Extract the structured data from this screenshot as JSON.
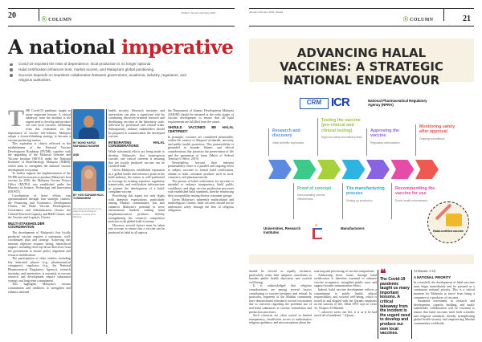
{
  "left_page": {
    "page_number": "20",
    "section": "COLUMN",
    "section_icon": "halal-h-logo",
    "issue": "#Halal | January-February 2026",
    "title_part1": "A national",
    "title_part2": "imperative",
    "bullets": [
      "Covid-19 exposed the risks of dependence: local production is no longer optional.",
      "Halal certification enhances trust, market access, and Malaysia's global positioning.",
      "Success depends on seamless collaboration between government, academia, industry, regulators, and religious authorities."
    ],
    "dropcap": "T",
    "col1": [
      "HE Covid-19 pandemic taught us many important lessons. A critical takeaway from the incident is the urgent need to develop and produce our own local vaccines. Stemming from this realisation on the importance of vaccine self-reliance, Malaysia adopts a forward-thinking strategy to become a vaccine-producing nation.",
      "This aspiration is clearly reflected in the establishment of the National Vaccine Development Roadmap (NVDR), together with the upgrading of the Malaysia Genome and Vaccine Institute (MGVI) under the National Institutes of Biotechnology Malaysia (NIBM), which aims to strengthen the national vaccine development ecosystem.",
      "To further support the implementation of the NVDR and its mission to produce Malaysia's first vaccine by 2030, the Malaysia Vaccine Project Office (MVPO) was established under the Ministry of Science, Technology and Innovation (MOSTI).",
      "Coordination of these efforts was operationalised through four strategic clusters: the Financing and Economics Development Cluster, the Halal Vaccine Development, Governance and Administration Cluster, the Clinical Research Capacity and R&D Cluster, and the Vaccine and Logistics Cluster."
    ],
    "heading1": "MULTI-STAKEHOLDER COORDINATION",
    "col1b": [
      "The development of Malaysia's first locally produced vaccine requires a systematic, well-coordinated plan and strategy. Achieving this national objective requires strong, hierarchical support, including clear top-down directives from the government to ensure policy alignment and resource mobilisation.",
      "The participation of other entities, including key industrial players (e.g., pharmaceutical companies), regulators (e.g., the National Pharmaceutical Regulatory Agency), research institutes, and universities, is essential, as vaccine research and development require substantial synergy and long-term commitment.",
      "This highlights Malaysia's serious commitment and readiness to strengthen and enhance national"
    ],
    "authors": [
      {
        "prefix": "BY",
        "name": "MOHD HAFIZI MUHAMAD HASHIM"
      },
      {
        "prefix": "BY",
        "name": "YUSI SUHAIMI HAJI-YUSMANIKIM"
      }
    ],
    "and": "AND",
    "author_note": "The writers are lecturers at the Halal Products Research Institute, Universiti Putra Malaysia.",
    "col3": [
      "health security. Research institutes and universities can play a significant role by conducting discovery-oriented research and developing vaccines at the laboratory scale, followed by preclinical and clinical trials. Subsequently, industry stakeholders should be prepared to commercialise the developed vaccine."
    ],
    "heading2": "INTEGRATING HALAL CONSIDERATIONS",
    "col3b": [
      "While substantial efforts are being made to develop Malaysia's first home-grown vaccine, one critical criterion is ensuring that the locally produced vaccine can be certified halal.",
      "Given Malaysia's established reputation as a global leader and reference point in the halal industry, the nation is well-positioned to leverage its existing expertise, regulatory frameworks, and certification infrastructure to pioneer the development of a halal-compliant vaccine.",
      "Prioritising this aspect not only aligns with domestic expectations, particularly among Muslim communities, but also enhances Malaysia's potential to serve international markets seeking halal biopharmaceutical products, thereby strengthening the country's competitive position in the global halal economy.",
      "However, several factors must be taken into account to ensure that a vaccine can be produced as halal in all aspects."
    ],
    "col4": [
      "the Department of Islamic Development Malaysia (JAKIM) should be initiated at the early stages of vaccine development to ensure that all halal requirements are fulfilled from the outset."
    ],
    "heading3": "SHOULD VACCINES BE HALAL CERTIFIED?",
    "col4b": [
      "In principle, vaccines are considered permissible, within the context of Maqasid al-shariah, necessity and public health protection. This permissibility is grounded in broader Islamic and ethical considerations that prioritise the preservation of life and the prevention of harm (Mufti of Federal Territory's Office, 2019).",
      "Nevertheless, beyond their inherent permissibility, there is a parallel and ongoing effort to subject vaccines to formal halal certification, similar to other consumer products such as food, cosmetics, and pharmaceuticals.",
      "The pursuit of halal certification for vaccines is intended to enhance transparency, build public confidence, and align vaccine production processes with established halal standards, thereby reinforcing their acceptability among diverse consumer groups.",
      "Given Malaysia's inherently multicultural and multireligious context, halal vaccines should not be understood solely through the lens of religious obligation."
    ]
  },
  "right_page": {
    "issue": "January-February 2026 | #Halal",
    "section": "COLUMN",
    "page_number": "21",
    "banner_title": "ADVANCING HALAL VACCINES: A STRATEGIC NATIONAL ENDEAVOUR",
    "infographic": {
      "logos": [
        "CRM",
        "ICR"
      ],
      "regulator": "National Pharmaceutical Regulatory Agency (NPRA)",
      "top_stages": [
        {
          "title": "Research and discovery",
          "desc": "Initial scientific exploration",
          "color": "#5b8be0"
        },
        {
          "title": "Testing the vaccine (pre-clinical and clinical testing)",
          "desc": "Rigorous safety and efficacy trials",
          "color": "#98c13a"
        },
        {
          "title": "Approving the vaccine",
          "desc": "Regulatory authorization",
          "color": "#8a63e0"
        },
        {
          "title": "Monitoring safety after approval",
          "desc": "Ongoing surveillance",
          "color": "#e9534f"
        }
      ],
      "bottom_stages": [
        {
          "title": "Proof of concept",
          "desc": "Demonstrating vaccine effectiveness",
          "color": "#3cbf8a"
        },
        {
          "title": "The manufacturing process",
          "desc": "Scaling up production",
          "color": "#22a8d8"
        },
        {
          "title": "Recommending the vaccine for use",
          "desc": "Public health endorsement",
          "color": "#e2489a"
        }
      ],
      "arrow_colors": [
        "#5b8be0",
        "#3cc98a",
        "#a6d13a",
        "#2fb3e3",
        "#8a63e0",
        "#e44ca8",
        "#ef5a50"
      ],
      "actors": [
        "Universities, Research Institutes",
        "Manufacturers"
      ],
      "badge": "Halal-certified vaccine"
    },
    "col1": [
      "should be viewed as equally inclusive, particularly when their adoption contributes to broader public health objectives and societal well-being.",
      "It is acknowledged that religious considerations are among several factors contributing to vaccine hesitancy and refusal. In particular, segments of the Muslim community have demonstrated reluctance toward vaccination due to concerns regarding the potential use of non-halal substances in vaccine formulation and production processes.",
      "Such concerns are often rooted in limited transparency, insufficient access to authoritative religious guidance, and misconceptions about the"
    ],
    "col2": [
      "sourcing and processing of vaccine components.",
      "Addressing these issues through halal certification is therefore essential to enhance vaccine acceptance, strengthen public trust, and support broader immunisation efforts.",
      "Indeed, halal vaccine development reflects a commitment to public health, ethical responsibility, and societal well-being, which is rooted in and aligned with the Quranic emphasis on the sanctity of life. Allah SWT says in verse 32, Chapter Al-Maidah:",
      "\"...whoever saves one life, it is as if he had saved all of mankind...\" (Quran,"
    ],
    "pull_quote": "The Covid-19 pandemic taught us many important lessons. A critical takeaway from the incident is the urgent need to develop and produce our own local vaccines.",
    "col3_ref": "Al-Maidah: 5:32)",
    "heading": "A NATIONAL PRIORITY",
    "col3": [
      "In a nutshell, the development of halal-vaccines must begin immediately and be pursued as a continuous national priority. This is a critical moment for Malaysia to move from being a consumer to a producer of vaccines.",
      "Sustained investment in research and development, capacity building, and multi-stakeholder collaboration will be essential to ensure that halal vaccines meet both scientific and religious standards, thereby strengthening global health security and empowering Muslim communities worldwide."
    ]
  }
}
